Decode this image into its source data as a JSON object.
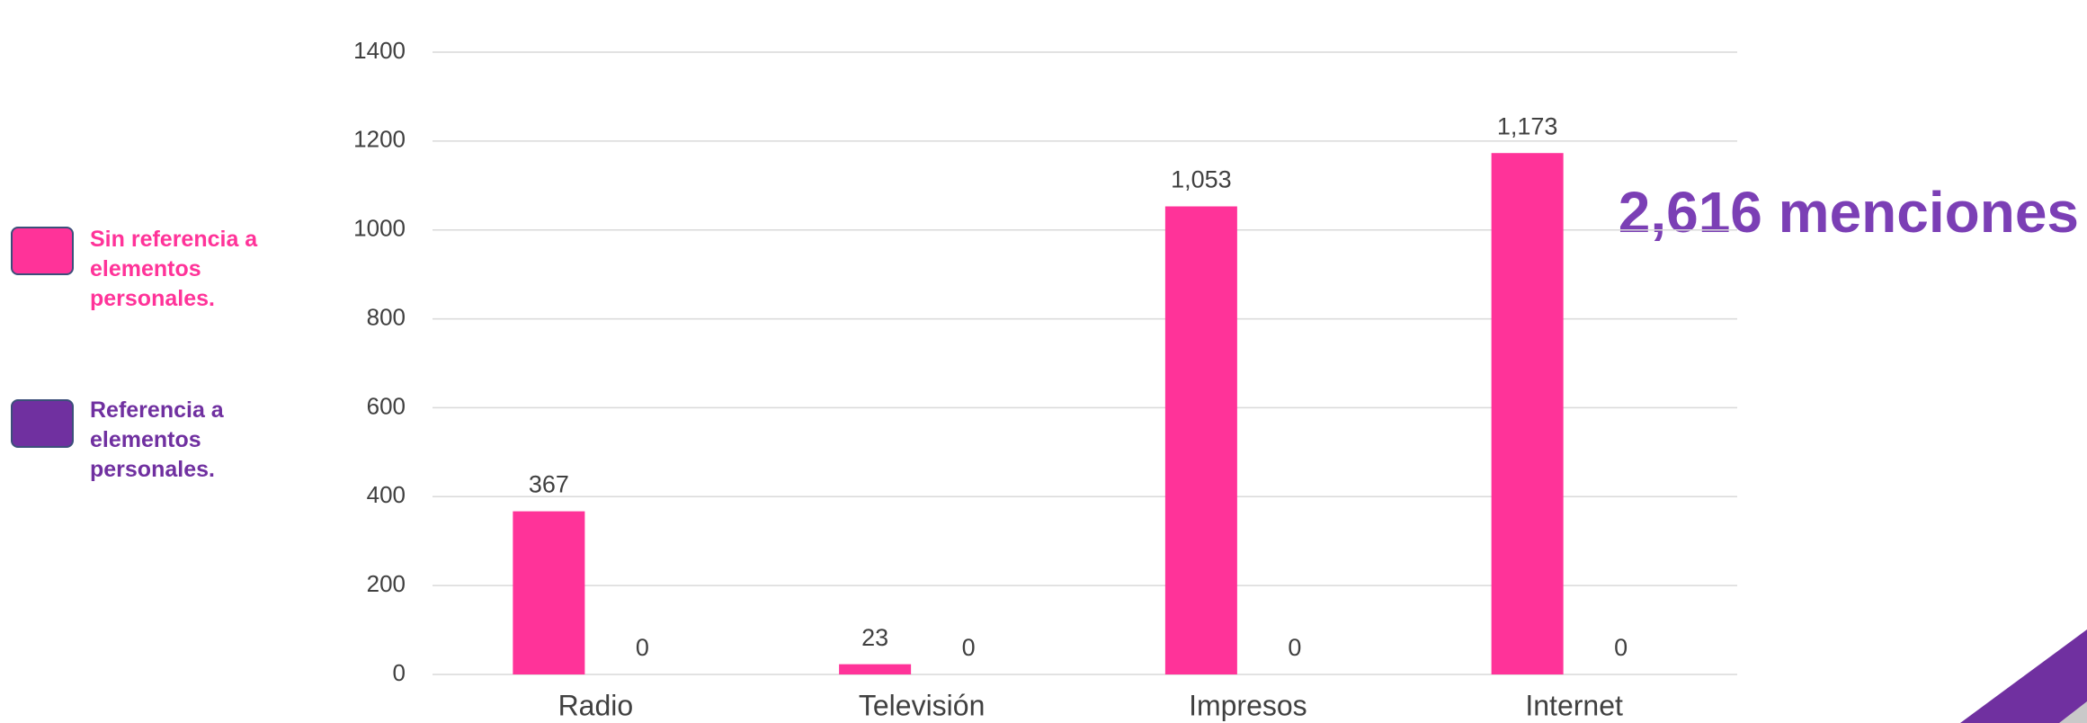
{
  "chart_data": {
    "type": "bar",
    "annotation": "2,616 menciones",
    "categories": [
      "Radio",
      "Televisión",
      "Impresos",
      "Internet"
    ],
    "series": [
      {
        "name": "Sin referencia a elementos personales.",
        "color": "#ff3399",
        "values": [
          367,
          23,
          1053,
          1173
        ],
        "value_labels": [
          "367",
          "23",
          "1,053",
          "1,173"
        ]
      },
      {
        "name": "Referencia a elementos personales.",
        "color": "#7030a0",
        "values": [
          0,
          0,
          0,
          0
        ]
      }
    ],
    "ylim": [
      0,
      1400
    ],
    "yticks": [
      0,
      200,
      400,
      600,
      800,
      1000,
      1200,
      1400
    ],
    "grid": true
  }
}
